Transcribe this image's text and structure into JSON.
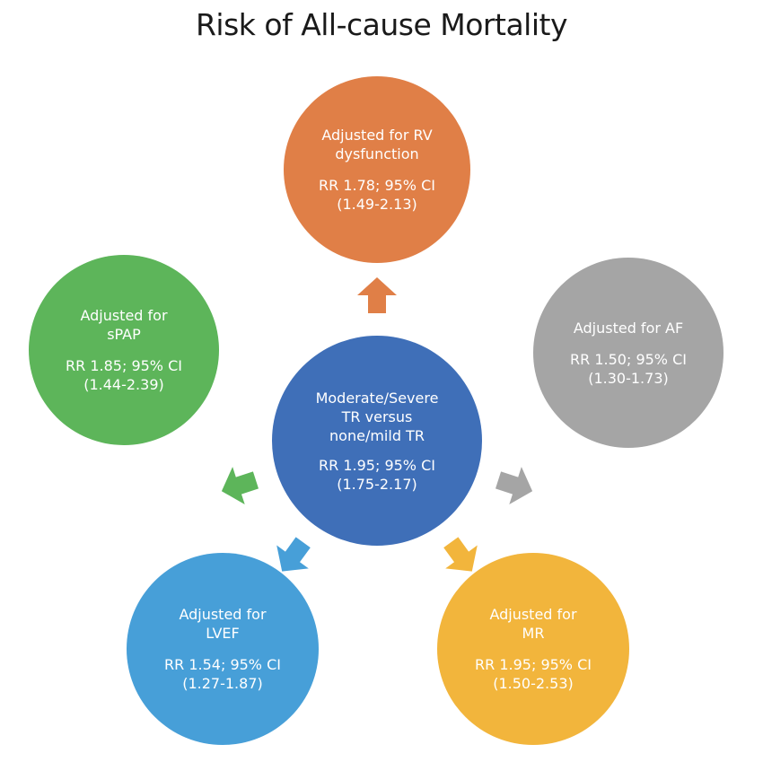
{
  "title": "Risk of All-cause Mortality",
  "center": {
    "label": "Moderate/Severe\nTR versus\nnone/mild TR",
    "stat": "RR 1.95; 95% CI\n(1.75-2.17)",
    "color": "#3f6fb8"
  },
  "outer": [
    {
      "id": "rv",
      "label": "Adjusted for RV\ndysfunction",
      "stat": "RR 1.78; 95% CI\n(1.49-2.13)",
      "color": "#e07f47"
    },
    {
      "id": "af",
      "label": "Adjusted for AF",
      "stat": "RR 1.50; 95% CI\n(1.30-1.73)",
      "color": "#a5a5a5"
    },
    {
      "id": "mr",
      "label": "Adjusted for\nMR",
      "stat": "RR 1.95; 95% CI\n(1.50-2.53)",
      "color": "#f2b53c"
    },
    {
      "id": "lvef",
      "label": "Adjusted for\nLVEF",
      "stat": "RR 1.54; 95% CI\n(1.27-1.87)",
      "color": "#479fd8"
    },
    {
      "id": "spap",
      "label": "Adjusted for\nsPAP",
      "stat": "RR 1.85; 95% CI\n(1.44-2.39)",
      "color": "#5db55a"
    }
  ]
}
